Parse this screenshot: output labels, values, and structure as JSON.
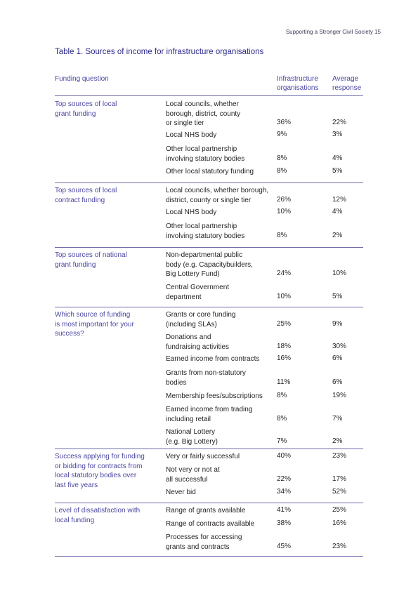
{
  "page_header": "Supporting a Stronger Civil Society  15",
  "title": "Table 1. Sources of income for infrastructure organisations",
  "columns": {
    "question": "Funding question",
    "infra_line1": "Infrastructure",
    "infra_line2": "organisations",
    "avg_line1": "Average",
    "avg_line2": "response"
  },
  "groups": [
    {
      "label": [
        "Top sources of local",
        "grant funding"
      ],
      "rows": [
        {
          "source": [
            "Local councils, whether",
            "borough, district, county",
            "or single tier"
          ],
          "infra": "36%",
          "avg": "22%"
        },
        {
          "source": [
            "Local NHS body"
          ],
          "infra": "9%",
          "avg": "3%"
        },
        {
          "source": [
            "Other local partnership",
            "involving statutory bodies"
          ],
          "infra": "8%",
          "avg": "4%"
        },
        {
          "source": [
            "Other local statutory funding"
          ],
          "infra": "8%",
          "avg": "5%"
        }
      ]
    },
    {
      "label": [
        "Top sources of local",
        "contract funding"
      ],
      "rows": [
        {
          "source": [
            "Local councils, whether borough,",
            "district, county or single tier"
          ],
          "infra": "26%",
          "avg": "12%"
        },
        {
          "source": [
            "Local NHS body"
          ],
          "infra": "10%",
          "avg": "4%"
        },
        {
          "source": [
            "Other local partnership",
            "involving statutory bodies"
          ],
          "infra": "8%",
          "avg": "2%"
        }
      ]
    },
    {
      "label": [
        "Top sources of national",
        "grant funding"
      ],
      "rows": [
        {
          "source": [
            "Non-departmental public",
            "body (e.g. Capacitybuilders,",
            "Big Lottery Fund)"
          ],
          "infra": "24%",
          "avg": "10%"
        },
        {
          "source": [
            "Central Government",
            "department"
          ],
          "infra": "10%",
          "avg": "5%"
        }
      ]
    },
    {
      "label": [
        "Which source of funding",
        "is most important for your",
        "success?"
      ],
      "rows": [
        {
          "source": [
            "Grants or core funding",
            "(including SLAs)"
          ],
          "infra": "25%",
          "avg": "9%"
        },
        {
          "source": [
            "Donations and",
            "fundraising activities"
          ],
          "infra": "18%",
          "avg": "30%"
        },
        {
          "source": [
            "Earned income from contracts"
          ],
          "infra": "16%",
          "avg": "6%"
        },
        {
          "source": [
            "Grants from non-statutory",
            "bodies"
          ],
          "infra": "11%",
          "avg": "6%"
        },
        {
          "source": [
            "Membership fees/subscriptions"
          ],
          "infra": "8%",
          "avg": "19%"
        },
        {
          "source": [
            "Earned income from trading",
            "including retail"
          ],
          "infra": "8%",
          "avg": "7%"
        },
        {
          "source": [
            "National Lottery",
            "(e.g. Big Lottery)"
          ],
          "infra": "7%",
          "avg": "2%"
        }
      ]
    },
    {
      "label": [
        "Success applying for funding",
        "or bidding for contracts from",
        "local statutory bodies over",
        "last five years"
      ],
      "rows": [
        {
          "source": [
            "Very or fairly successful"
          ],
          "infra": "40%",
          "avg": "23%"
        },
        {
          "source": [
            "Not very or not at",
            "all successful"
          ],
          "infra": "22%",
          "avg": "17%"
        },
        {
          "source": [
            "Never bid"
          ],
          "infra": "34%",
          "avg": "52%"
        }
      ]
    },
    {
      "label": [
        "Level of dissatisfaction with",
        "local funding"
      ],
      "rows": [
        {
          "source": [
            "Range of grants available"
          ],
          "infra": "41%",
          "avg": "25%"
        },
        {
          "source": [
            "Range of contracts available"
          ],
          "infra": "38%",
          "avg": "16%"
        },
        {
          "source": [
            "Processes for accessing",
            "grants and contracts"
          ],
          "infra": "45%",
          "avg": "23%"
        }
      ]
    }
  ]
}
